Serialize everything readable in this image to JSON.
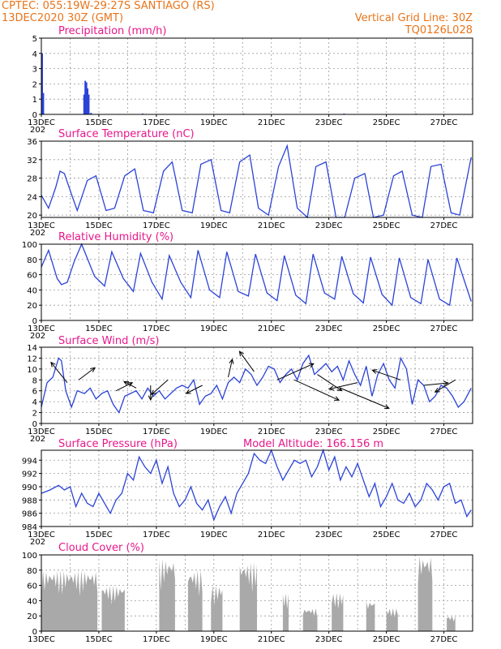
{
  "header": {
    "line1_left": "CPTEC:   055:19W-29:27S  SANTIAGO (RS)",
    "line2_left": "13DEC2020 30Z (GMT)",
    "line1_right": "Vertical Grid Line: 30Z",
    "line2_right": "TQ0126L028"
  },
  "x_ticks": [
    "13DEC",
    "15DEC",
    "17DEC",
    "19DEC",
    "21DEC",
    "23DEC",
    "25DEC",
    "27DEC"
  ],
  "x_cut_label": "202",
  "colors": {
    "line": "#2b43d8",
    "title": "#e8178a",
    "header": "#e8741a",
    "cloud": "#a9a9a9",
    "arrow": "#000000"
  },
  "chart_data": [
    {
      "type": "bar",
      "title": "Precipitation (mm/h)",
      "ylim": [
        0,
        5
      ],
      "yticks": [
        0,
        1,
        2,
        3,
        4,
        5
      ],
      "bars": [
        [
          0.0,
          4.0
        ],
        [
          0.04,
          1.4
        ],
        [
          1.46,
          1.3
        ],
        [
          1.5,
          2.2
        ],
        [
          1.54,
          2.1
        ],
        [
          1.58,
          1.7
        ],
        [
          1.62,
          1.3
        ],
        [
          1.7,
          0.1
        ],
        [
          3.5,
          0.05
        ],
        [
          7.0,
          0.05
        ],
        [
          10.5,
          0.05
        ],
        [
          13.0,
          0.05
        ]
      ]
    },
    {
      "type": "line",
      "title": "Surface Temperature (nC)",
      "ylim": [
        19.5,
        36
      ],
      "yticks": [
        20,
        24,
        28,
        32,
        36
      ],
      "x": [
        0.0,
        0.25,
        0.5,
        0.65,
        0.8,
        1.05,
        1.25,
        1.6,
        1.9,
        2.25,
        2.55,
        2.9,
        3.25,
        3.55,
        3.9,
        4.25,
        4.55,
        4.9,
        5.25,
        5.55,
        5.9,
        6.25,
        6.55,
        6.9,
        7.25,
        7.55,
        7.9,
        8.25,
        8.55,
        8.9,
        9.25,
        9.55,
        9.9,
        10.25,
        10.55,
        10.9,
        11.25,
        11.55,
        11.9,
        12.25,
        12.55,
        12.9,
        13.25,
        13.55,
        13.9,
        14.25,
        14.55,
        14.95
      ],
      "y": [
        24.3,
        21.5,
        26.0,
        29.5,
        29.0,
        24.5,
        21.0,
        27.5,
        28.5,
        21.0,
        21.5,
        28.5,
        30.0,
        21.0,
        20.5,
        29.5,
        31.5,
        21.0,
        20.5,
        31.0,
        32.0,
        21.0,
        20.5,
        31.5,
        33.0,
        21.5,
        20.0,
        30.5,
        35.0,
        21.5,
        19.5,
        30.5,
        31.5,
        19.5,
        19.5,
        28.0,
        29.0,
        19.5,
        20.0,
        28.5,
        29.5,
        20.0,
        19.5,
        30.5,
        31.0,
        20.5,
        20.0,
        32.5
      ]
    },
    {
      "type": "line",
      "title": "Relative Humidity (%)",
      "ylim": [
        0,
        100
      ],
      "yticks": [
        0,
        20,
        40,
        60,
        80,
        100
      ],
      "x": [
        0.0,
        0.25,
        0.55,
        0.7,
        0.9,
        1.15,
        1.4,
        1.85,
        2.2,
        2.45,
        2.85,
        3.2,
        3.45,
        3.85,
        4.2,
        4.45,
        4.85,
        5.2,
        5.45,
        5.85,
        6.2,
        6.45,
        6.85,
        7.2,
        7.45,
        7.85,
        8.2,
        8.45,
        8.85,
        9.2,
        9.45,
        9.85,
        10.2,
        10.45,
        10.85,
        11.2,
        11.45,
        11.85,
        12.2,
        12.45,
        12.85,
        13.2,
        13.45,
        13.85,
        14.2,
        14.45,
        14.95
      ],
      "y": [
        70,
        92,
        55,
        47,
        50,
        78,
        100,
        58,
        45,
        90,
        55,
        38,
        88,
        50,
        28,
        85,
        50,
        30,
        92,
        40,
        30,
        90,
        38,
        32,
        87,
        36,
        26,
        85,
        33,
        22,
        87,
        36,
        28,
        84,
        35,
        23,
        83,
        34,
        20,
        82,
        30,
        22,
        80,
        28,
        20,
        82,
        25
      ]
    },
    {
      "type": "line",
      "title": "Surface Wind (m/s)",
      "ylim": [
        0,
        14
      ],
      "yticks": [
        0,
        2,
        4,
        6,
        8,
        10,
        12,
        14
      ],
      "x": [
        0.0,
        0.2,
        0.4,
        0.6,
        0.7,
        0.85,
        1.05,
        1.25,
        1.5,
        1.7,
        1.9,
        2.1,
        2.3,
        2.5,
        2.7,
        2.9,
        3.1,
        3.3,
        3.5,
        3.7,
        3.9,
        4.1,
        4.3,
        4.5,
        4.7,
        4.9,
        5.1,
        5.3,
        5.5,
        5.7,
        5.9,
        6.1,
        6.3,
        6.5,
        6.7,
        6.9,
        7.1,
        7.3,
        7.5,
        7.7,
        7.9,
        8.1,
        8.3,
        8.5,
        8.7,
        8.9,
        9.1,
        9.3,
        9.5,
        9.7,
        9.9,
        10.1,
        10.3,
        10.5,
        10.7,
        10.9,
        11.1,
        11.3,
        11.5,
        11.7,
        11.9,
        12.1,
        12.3,
        12.5,
        12.7,
        12.9,
        13.1,
        13.3,
        13.5,
        13.7,
        13.9,
        14.1,
        14.3,
        14.5,
        14.7,
        14.95
      ],
      "y": [
        3.0,
        7.5,
        8.5,
        12.0,
        11.5,
        6.0,
        3.0,
        6.0,
        5.5,
        6.5,
        4.5,
        5.5,
        6.0,
        3.5,
        2.0,
        5.0,
        5.5,
        6.0,
        4.5,
        6.5,
        5.0,
        6.0,
        4.5,
        5.5,
        6.5,
        7.0,
        6.5,
        8.0,
        3.5,
        5.0,
        5.5,
        7.0,
        4.5,
        7.5,
        8.5,
        7.5,
        10.0,
        9.0,
        7.0,
        8.5,
        10.5,
        10.0,
        7.5,
        9.0,
        10.0,
        8.0,
        11.0,
        12.5,
        9.0,
        10.0,
        11.0,
        9.5,
        10.5,
        8.0,
        11.5,
        9.0,
        7.0,
        10.5,
        5.0,
        9.0,
        11.0,
        8.0,
        6.5,
        12.0,
        10.0,
        3.5,
        8.0,
        7.0,
        4.0,
        5.0,
        7.0,
        6.5,
        5.0,
        3.0,
        4.0,
        6.5
      ]
    },
    {
      "type": "line",
      "title": "Surface Pressure (hPa)",
      "annotation": "Model Altitude: 166.156 m",
      "ylim": [
        984,
        995.5
      ],
      "yticks": [
        984,
        986,
        988,
        990,
        992,
        994
      ],
      "x": [
        0.0,
        0.3,
        0.6,
        0.8,
        1.0,
        1.2,
        1.4,
        1.6,
        1.8,
        2.0,
        2.2,
        2.4,
        2.6,
        2.8,
        3.0,
        3.2,
        3.4,
        3.6,
        3.8,
        4.0,
        4.2,
        4.4,
        4.6,
        4.8,
        5.0,
        5.2,
        5.4,
        5.6,
        5.8,
        6.0,
        6.2,
        6.4,
        6.6,
        6.8,
        7.0,
        7.2,
        7.4,
        7.6,
        7.8,
        8.0,
        8.2,
        8.4,
        8.6,
        8.8,
        9.0,
        9.2,
        9.4,
        9.6,
        9.8,
        10.0,
        10.2,
        10.4,
        10.6,
        10.8,
        11.0,
        11.2,
        11.4,
        11.6,
        11.8,
        12.0,
        12.2,
        12.4,
        12.6,
        12.8,
        13.0,
        13.2,
        13.4,
        13.6,
        13.8,
        14.0,
        14.2,
        14.4,
        14.6,
        14.8,
        14.95
      ],
      "y": [
        989.0,
        989.5,
        990.2,
        989.5,
        990.0,
        987.0,
        989.0,
        987.5,
        987.0,
        989.0,
        987.5,
        986.0,
        988.0,
        989.0,
        992.0,
        991.0,
        994.5,
        993.0,
        992.0,
        994.0,
        990.5,
        993.0,
        989.0,
        987.0,
        988.0,
        990.0,
        987.5,
        986.5,
        988.0,
        985.0,
        987.0,
        988.5,
        986.0,
        989.0,
        990.5,
        992.0,
        995.0,
        994.0,
        993.5,
        995.5,
        993.0,
        991.0,
        992.5,
        994.0,
        993.5,
        994.0,
        991.5,
        993.0,
        995.5,
        992.5,
        994.5,
        991.0,
        993.0,
        991.5,
        993.5,
        991.0,
        988.5,
        990.5,
        987.0,
        988.5,
        990.5,
        988.0,
        987.5,
        989.0,
        987.0,
        988.0,
        990.5,
        989.5,
        988.0,
        990.0,
        990.5,
        987.5,
        988.0,
        985.5,
        986.5
      ]
    },
    {
      "type": "bar",
      "title": "Cloud Cover (%)",
      "ylim": [
        0,
        100
      ],
      "yticks": [
        0,
        20,
        40,
        60,
        80,
        100
      ],
      "segments": [
        [
          0.0,
          1.95,
          80
        ],
        [
          2.1,
          2.9,
          60
        ],
        [
          4.1,
          4.65,
          95
        ],
        [
          5.1,
          5.6,
          80
        ],
        [
          5.9,
          6.3,
          60
        ],
        [
          6.9,
          7.5,
          90
        ],
        [
          8.4,
          8.6,
          50
        ],
        [
          9.1,
          9.6,
          30
        ],
        [
          10.1,
          10.5,
          50
        ],
        [
          11.3,
          11.6,
          40
        ],
        [
          12.0,
          12.4,
          30
        ],
        [
          13.1,
          13.6,
          100
        ],
        [
          14.1,
          14.4,
          20
        ]
      ]
    }
  ]
}
